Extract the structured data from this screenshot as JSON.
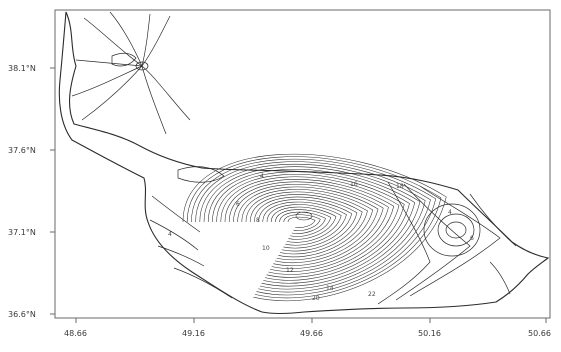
{
  "map": {
    "axis_y_labels": [
      "38.1°N",
      "37.6°N",
      "37.1°N",
      "36.6°N"
    ],
    "axis_x_labels": [
      "48.66",
      "49.16",
      "49.66",
      "50.16",
      "50.66"
    ],
    "contour_labels": [
      "4",
      "6",
      "8",
      "10",
      "12",
      "14",
      "16",
      "18",
      "20",
      "22"
    ],
    "colors": {
      "line": "#2b2b2b",
      "frame": "#6a6a6a",
      "background": "#ffffff"
    }
  }
}
